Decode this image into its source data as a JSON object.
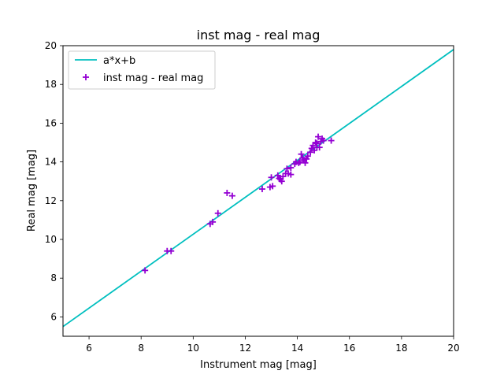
{
  "chart_data": {
    "type": "scatter",
    "title": "inst mag - real mag",
    "xlabel": "Instrument mag [mag]",
    "ylabel": "Real mag [mag]",
    "xlim": [
      5,
      20
    ],
    "ylim": [
      5,
      20
    ],
    "xticks": [
      6,
      8,
      10,
      12,
      14,
      16,
      18,
      20
    ],
    "yticks": [
      6,
      8,
      10,
      12,
      14,
      16,
      18,
      20
    ],
    "grid": false,
    "legend_position": "upper left",
    "series": [
      {
        "name": "a*x+b",
        "kind": "line",
        "color": "#00bfbf",
        "x": [
          5.0,
          20.0
        ],
        "y": [
          5.5,
          19.8
        ]
      },
      {
        "name": "inst mag - real mag",
        "kind": "scatter",
        "marker": "+",
        "color": "#9400d3",
        "x": [
          8.15,
          9.0,
          9.15,
          10.65,
          10.75,
          10.95,
          11.3,
          11.5,
          12.65,
          12.95,
          13.0,
          13.05,
          13.25,
          13.3,
          13.35,
          13.4,
          13.45,
          13.55,
          13.6,
          13.65,
          13.75,
          13.75,
          13.9,
          13.95,
          14.05,
          14.1,
          14.15,
          14.2,
          14.25,
          14.3,
          14.35,
          14.4,
          14.5,
          14.55,
          14.6,
          14.65,
          14.7,
          14.75,
          14.75,
          14.8,
          14.85,
          14.9,
          14.95,
          15.0,
          15.3
        ],
        "y": [
          8.4,
          9.4,
          9.4,
          10.8,
          10.9,
          11.35,
          12.4,
          12.25,
          12.6,
          12.7,
          13.2,
          12.75,
          13.3,
          13.15,
          13.1,
          13.0,
          13.25,
          13.4,
          13.65,
          13.4,
          13.35,
          13.7,
          13.9,
          14.0,
          13.95,
          14.0,
          14.4,
          14.2,
          14.1,
          13.95,
          14.15,
          14.3,
          14.5,
          14.7,
          14.85,
          14.6,
          15.0,
          14.95,
          14.75,
          15.3,
          14.75,
          15.05,
          15.2,
          15.1,
          15.1
        ]
      }
    ]
  }
}
